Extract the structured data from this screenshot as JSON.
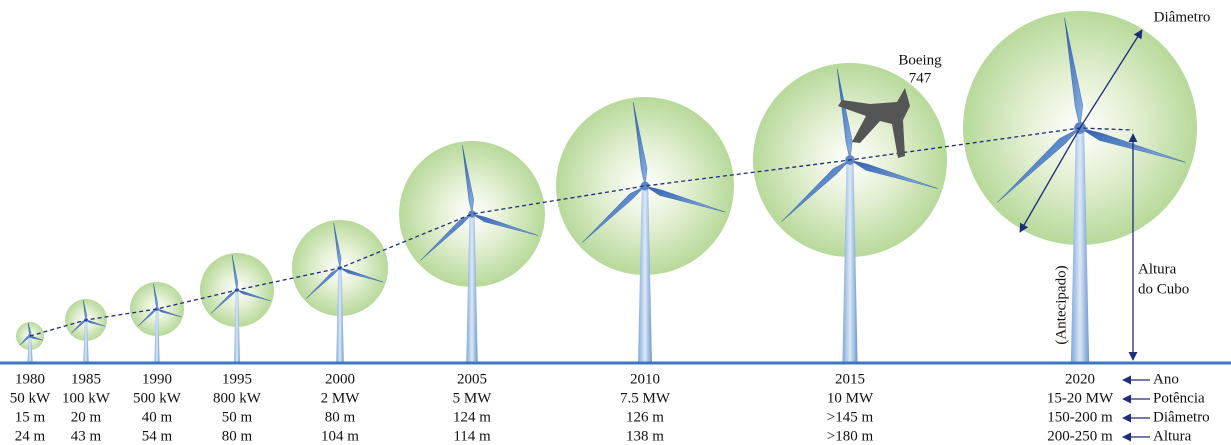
{
  "turbines": [
    {
      "year": "1980",
      "power": "50 kW",
      "diameter": "15 m",
      "height": "24 m"
    },
    {
      "year": "1985",
      "power": "100 kW",
      "diameter": "20 m",
      "height": "43 m"
    },
    {
      "year": "1990",
      "power": "500 kW",
      "diameter": "40 m",
      "height": "54 m"
    },
    {
      "year": "1995",
      "power": "800 kW",
      "diameter": "50 m",
      "height": "80 m"
    },
    {
      "year": "2000",
      "power": "2 MW",
      "diameter": "80 m",
      "height": "104 m"
    },
    {
      "year": "2005",
      "power": "5 MW",
      "diameter": "124 m",
      "height": "114 m"
    },
    {
      "year": "2010",
      "power": "7.5 MW",
      "diameter": "126 m",
      "height": "138 m"
    },
    {
      "year": "2015",
      "power": "10 MW",
      "diameter": ">145 m",
      "height": ">180 m"
    },
    {
      "year": "2020",
      "power": "15-20 MW",
      "diameter": "150-200 m",
      "height": "200-250 m"
    }
  ],
  "annotations": {
    "diameter": "Diâmetro",
    "plane": [
      "Boeing",
      "747"
    ],
    "hub_height": [
      "Altura",
      "do Cubo"
    ],
    "anticipated": "(Antecipado)"
  },
  "row_labels": [
    "Ano",
    "Potência",
    "Diâmetro",
    "Altura"
  ]
}
